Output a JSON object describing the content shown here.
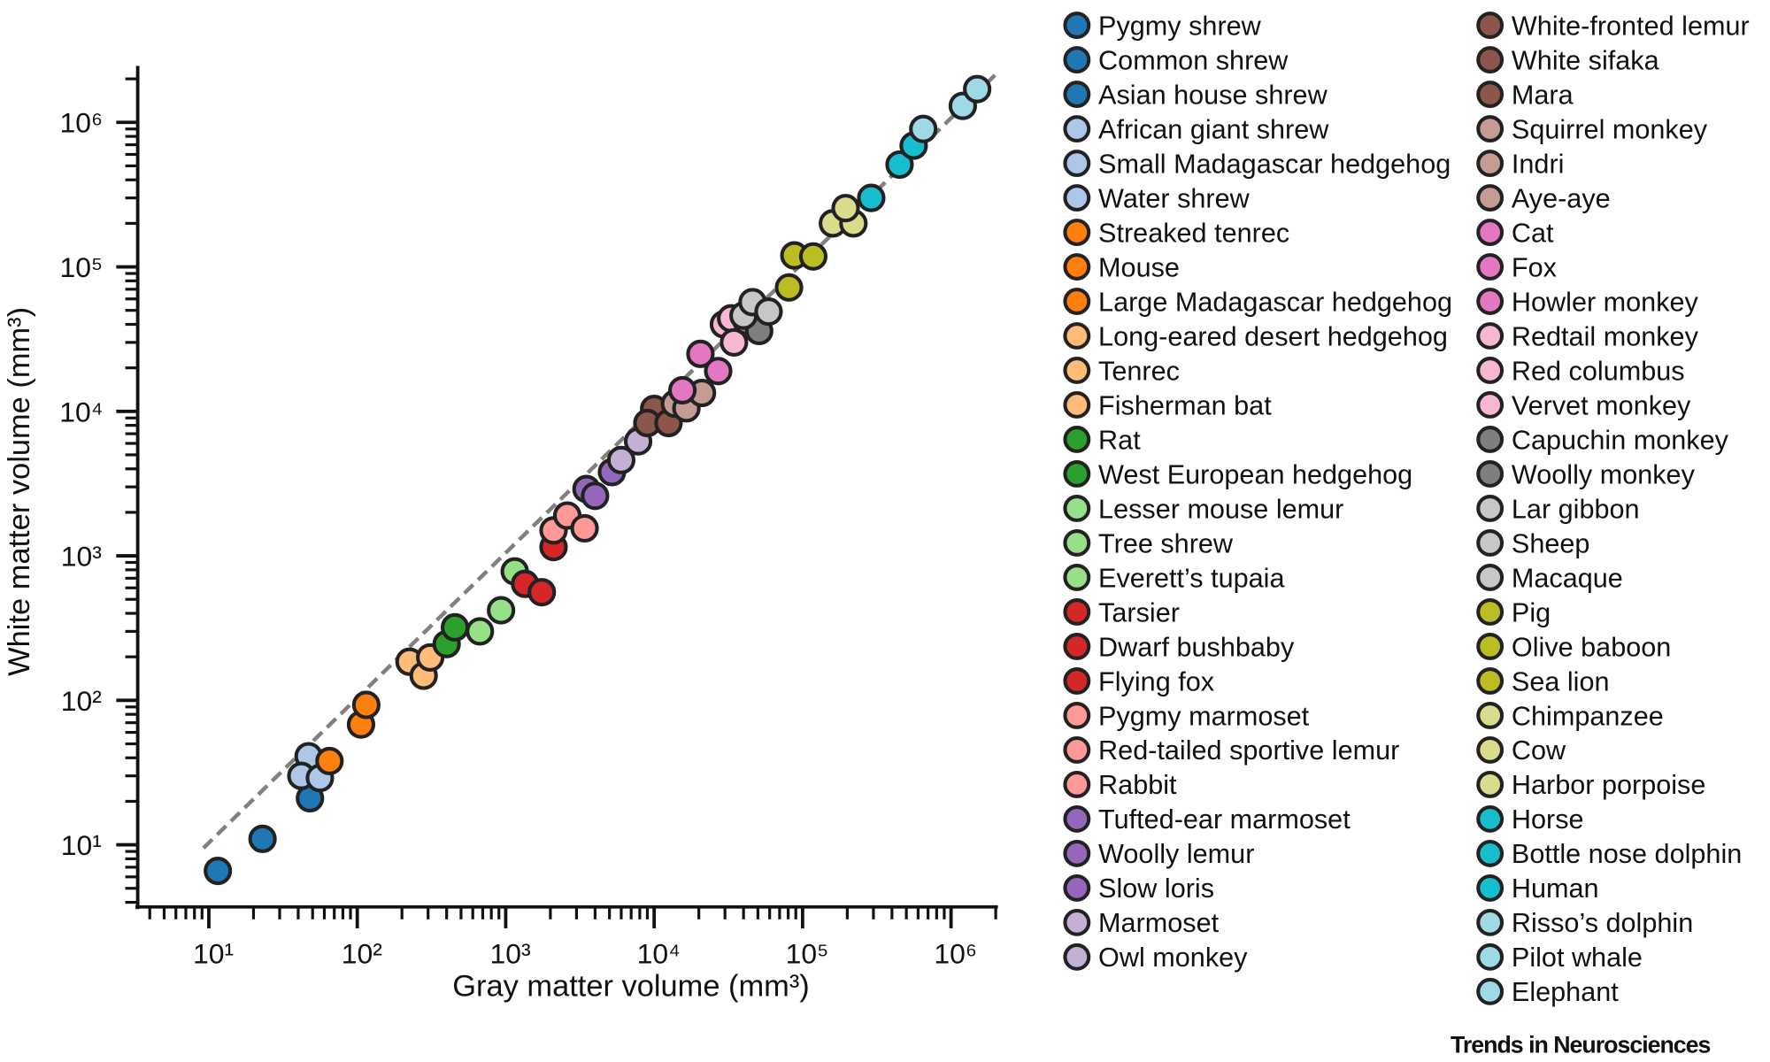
{
  "chart_data": {
    "type": "scatter",
    "title": "",
    "xlabel": "Gray matter volume (mm³)",
    "ylabel": "White matter volume (mm³)",
    "xscale": "log",
    "yscale": "log",
    "xlim": [
      3.3,
      2050000
    ],
    "ylim": [
      3.7,
      2300000
    ],
    "xticks": [
      10,
      100,
      1000,
      10000,
      100000,
      1000000
    ],
    "xtick_labels": [
      "10¹",
      "10²",
      "10³",
      "10⁴",
      "10⁵",
      "10⁶"
    ],
    "yticks": [
      10,
      100,
      1000,
      10000,
      100000,
      1000000
    ],
    "ytick_labels": [
      "10¹",
      "10²",
      "10³",
      "10⁴",
      "10⁵",
      "10⁶"
    ],
    "grid": false,
    "legend_placement": "right",
    "fit_line": {
      "style": "dashed",
      "color": "#808080",
      "from": [
        9.2,
        9.5
      ],
      "to": [
        2050000,
        2200000
      ]
    },
    "series": [
      {
        "name": "Pygmy shrew",
        "color": "#1f77b4",
        "x": 11.5,
        "y": 6.6
      },
      {
        "name": "Common shrew",
        "color": "#1f77b4",
        "x": 23,
        "y": 11
      },
      {
        "name": "Asian house shrew",
        "color": "#1f77b4",
        "x": 48,
        "y": 21
      },
      {
        "name": "African giant shrew",
        "color": "#aec7e8",
        "x": 47,
        "y": 41
      },
      {
        "name": "Small Madagascar hedgehog",
        "color": "#aec7e8",
        "x": 42,
        "y": 30
      },
      {
        "name": "Water shrew",
        "color": "#aec7e8",
        "x": 56,
        "y": 29
      },
      {
        "name": "Streaked tenrec",
        "color": "#ff7f0e",
        "x": 65,
        "y": 38
      },
      {
        "name": "Mouse",
        "color": "#ff7f0e",
        "x": 106,
        "y": 68
      },
      {
        "name": "Large Madagascar hedgehog",
        "color": "#ff7f0e",
        "x": 115,
        "y": 93
      },
      {
        "name": "Long-eared desert hedgehog",
        "color": "#ffbb78",
        "x": 225,
        "y": 185
      },
      {
        "name": "Tenrec",
        "color": "#ffbb78",
        "x": 280,
        "y": 148
      },
      {
        "name": "Fisherman bat",
        "color": "#ffbb78",
        "x": 310,
        "y": 198
      },
      {
        "name": "Rat",
        "color": "#2ca02c",
        "x": 400,
        "y": 245
      },
      {
        "name": "West European hedgehog",
        "color": "#2ca02c",
        "x": 455,
        "y": 320
      },
      {
        "name": "Lesser mouse lemur",
        "color": "#98df8a",
        "x": 670,
        "y": 300
      },
      {
        "name": "Tree shrew",
        "color": "#98df8a",
        "x": 930,
        "y": 420
      },
      {
        "name": "Everett’s tupaia",
        "color": "#98df8a",
        "x": 1150,
        "y": 780
      },
      {
        "name": "Tarsier",
        "color": "#d62728",
        "x": 1350,
        "y": 640
      },
      {
        "name": "Dwarf bushbaby",
        "color": "#d62728",
        "x": 1750,
        "y": 560
      },
      {
        "name": "Flying fox",
        "color": "#d62728",
        "x": 2100,
        "y": 1150
      },
      {
        "name": "Pygmy marmoset",
        "color": "#ff9896",
        "x": 2100,
        "y": 1500
      },
      {
        "name": "Red-tailed sportive lemur",
        "color": "#ff9896",
        "x": 2600,
        "y": 1900
      },
      {
        "name": "Rabbit",
        "color": "#ff9896",
        "x": 3400,
        "y": 1550
      },
      {
        "name": "Tufted-ear marmoset",
        "color": "#9467bd",
        "x": 3500,
        "y": 2900
      },
      {
        "name": "Woolly lemur",
        "color": "#9467bd",
        "x": 4000,
        "y": 2600
      },
      {
        "name": "Slow loris",
        "color": "#9467bd",
        "x": 5200,
        "y": 3800
      },
      {
        "name": "Marmoset",
        "color": "#c5b0d5",
        "x": 6000,
        "y": 4600
      },
      {
        "name": "Owl monkey",
        "color": "#c5b0d5",
        "x": 7800,
        "y": 6200
      },
      {
        "name": "White-fronted lemur",
        "color": "#8c564b",
        "x": 10000,
        "y": 10400
      },
      {
        "name": "White sifaka",
        "color": "#8c564b",
        "x": 9000,
        "y": 8300
      },
      {
        "name": "Mara",
        "color": "#8c564b",
        "x": 12500,
        "y": 8300
      },
      {
        "name": "Squirrel monkey",
        "color": "#c49c94",
        "x": 13800,
        "y": 11300
      },
      {
        "name": "Indri",
        "color": "#c49c94",
        "x": 16500,
        "y": 10500
      },
      {
        "name": "Aye-aye",
        "color": "#c49c94",
        "x": 21000,
        "y": 13400
      },
      {
        "name": "Cat",
        "color": "#e377c2",
        "x": 15500,
        "y": 14000
      },
      {
        "name": "Fox",
        "color": "#e377c2",
        "x": 27000,
        "y": 19000
      },
      {
        "name": "Howler monkey",
        "color": "#e377c2",
        "x": 20500,
        "y": 25000
      },
      {
        "name": "Redtail monkey",
        "color": "#f7b6d2",
        "x": 29500,
        "y": 40000
      },
      {
        "name": "Red columbus",
        "color": "#f7b6d2",
        "x": 33000,
        "y": 44000
      },
      {
        "name": "Vervet monkey",
        "color": "#f7b6d2",
        "x": 34500,
        "y": 30000
      },
      {
        "name": "Capuchin monkey",
        "color": "#7f7f7f",
        "x": 42000,
        "y": 42000
      },
      {
        "name": "Woolly monkey",
        "color": "#7f7f7f",
        "x": 51000,
        "y": 36000
      },
      {
        "name": "Lar gibbon",
        "color": "#c7c7c7",
        "x": 40000,
        "y": 46000
      },
      {
        "name": "Sheep",
        "color": "#c7c7c7",
        "x": 46000,
        "y": 57000
      },
      {
        "name": "Macaque",
        "color": "#c7c7c7",
        "x": 59000,
        "y": 49000
      },
      {
        "name": "Pig",
        "color": "#bcbd22",
        "x": 81000,
        "y": 72000
      },
      {
        "name": "Olive baboon",
        "color": "#bcbd22",
        "x": 88000,
        "y": 120000
      },
      {
        "name": "Sea lion",
        "color": "#bcbd22",
        "x": 118000,
        "y": 118000
      },
      {
        "name": "Chimpanzee",
        "color": "#dbdb8d",
        "x": 160000,
        "y": 200000
      },
      {
        "name": "Cow",
        "color": "#dbdb8d",
        "x": 220000,
        "y": 200000
      },
      {
        "name": "Harbor porpoise",
        "color": "#dbdb8d",
        "x": 195000,
        "y": 255000
      },
      {
        "name": "Horse",
        "color": "#17becf",
        "x": 290000,
        "y": 300000
      },
      {
        "name": "Bottle nose dolphin",
        "color": "#17becf",
        "x": 450000,
        "y": 510000
      },
      {
        "name": "Human",
        "color": "#17becf",
        "x": 560000,
        "y": 690000
      },
      {
        "name": "Risso’s dolphin",
        "color": "#9edae5",
        "x": 650000,
        "y": 900000
      },
      {
        "name": "Pilot whale",
        "color": "#9edae5",
        "x": 1200000,
        "y": 1300000
      },
      {
        "name": "Elephant",
        "color": "#9edae5",
        "x": 1500000,
        "y": 1700000
      }
    ]
  },
  "credit": "Trends in Neurosciences"
}
